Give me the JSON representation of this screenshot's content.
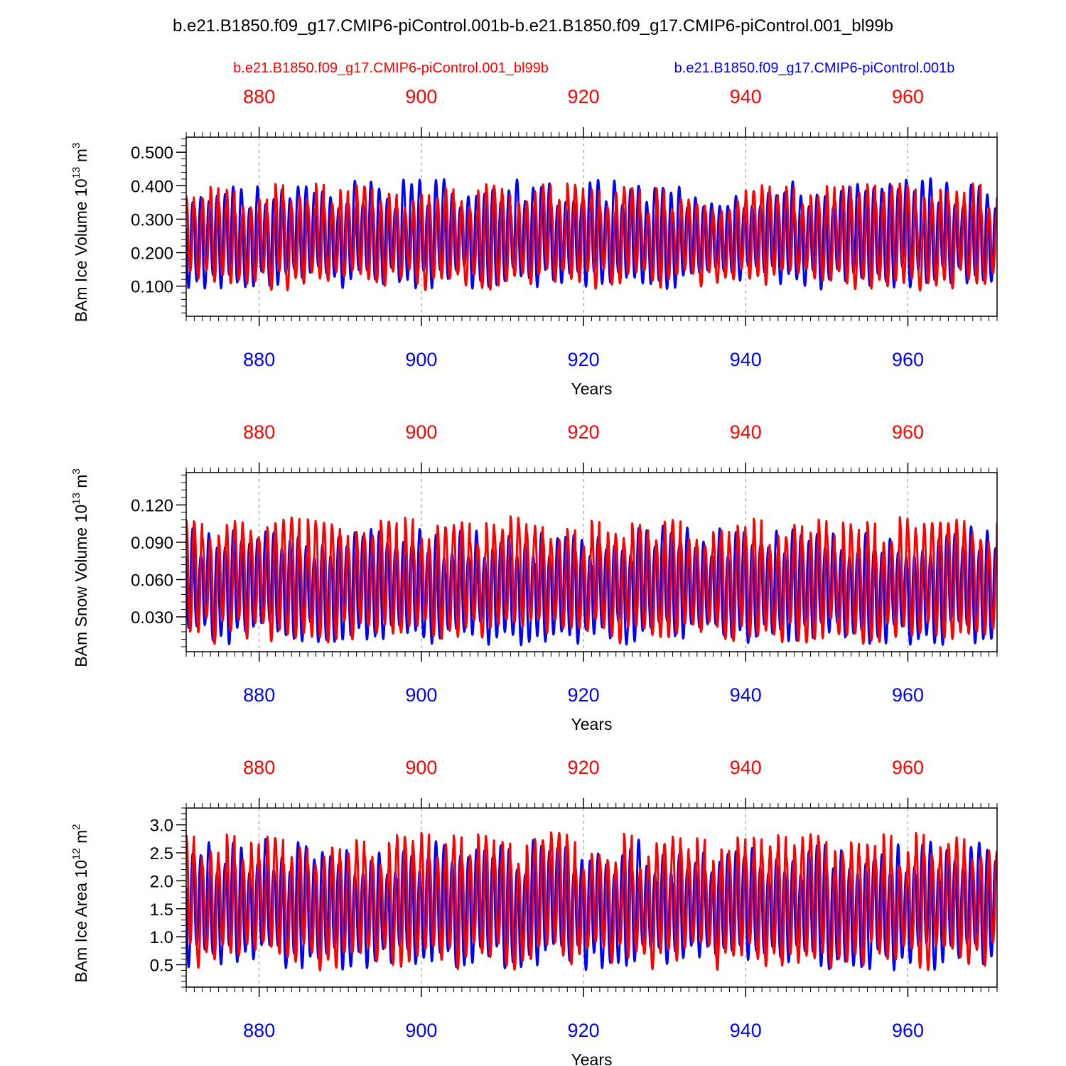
{
  "title": "b.e21.B1850.f09_g17.CMIP6-piControl.001b-b.e21.B1850.f09_g17.CMIP6-piControl.001_bl99b",
  "legend": {
    "red_label": "b.e21.B1850.f09_g17.CMIP6-piControl.001_bl99b",
    "blue_label": "b.e21.B1850.f09_g17.CMIP6-piControl.001b"
  },
  "colors": {
    "red": "#ff0000",
    "blue": "#0000ff",
    "axis": "#000000",
    "grid": "#888888"
  },
  "chart_data": [
    {
      "type": "line",
      "ylabel": "BAm Ice Volume 10",
      "ylabel_exp": "13",
      "ylabel_unit": " m",
      "ylabel_unit_exp": "3",
      "xlabel": "Years",
      "xlim": [
        871,
        971
      ],
      "ylim": [
        0.01,
        0.545
      ],
      "yticks": [
        0.1,
        0.2,
        0.3,
        0.4,
        0.5
      ],
      "ytick_labels": [
        "0.100",
        "0.200",
        "0.300",
        "0.400",
        "0.500"
      ],
      "xticks": [
        880,
        900,
        920,
        940,
        960
      ],
      "xtick_labels": [
        "880",
        "900",
        "920",
        "940",
        "960"
      ],
      "series": [
        {
          "name": "b.e21.B1850.f09_g17.CMIP6-piControl.001b",
          "color": "#0000ff",
          "base": 0.245,
          "amp": 0.155,
          "phase": 0.2,
          "seed": 3
        },
        {
          "name": "b.e21.B1850.f09_g17.CMIP6-piControl.001_bl99b",
          "color": "#ff0000",
          "base": 0.235,
          "amp": 0.15,
          "phase": 0.0,
          "seed": 7
        }
      ]
    },
    {
      "type": "line",
      "ylabel": "BAm Snow Volume 10",
      "ylabel_exp": "13",
      "ylabel_unit": " m",
      "ylabel_unit_exp": "3",
      "xlabel": "Years",
      "xlim": [
        871,
        971
      ],
      "ylim": [
        0.002,
        0.146
      ],
      "yticks": [
        0.03,
        0.06,
        0.09,
        0.12
      ],
      "ytick_labels": [
        "0.030",
        "0.060",
        "0.090",
        "0.120"
      ],
      "xticks": [
        880,
        900,
        920,
        940,
        960
      ],
      "xtick_labels": [
        "880",
        "900",
        "920",
        "940",
        "960"
      ],
      "series": [
        {
          "name": "b.e21.B1850.f09_g17.CMIP6-piControl.001b",
          "color": "#0000ff",
          "base": 0.052,
          "amp": 0.045,
          "phase": 0.2,
          "seed": 11
        },
        {
          "name": "b.e21.B1850.f09_g17.CMIP6-piControl.001_bl99b",
          "color": "#ff0000",
          "base": 0.056,
          "amp": 0.048,
          "phase": 0.0,
          "seed": 5
        }
      ]
    },
    {
      "type": "line",
      "ylabel": "BAm Ice Area 10",
      "ylabel_exp": "12",
      "ylabel_unit": " m",
      "ylabel_unit_exp": "2",
      "xlabel": "Years",
      "xlim": [
        871,
        971
      ],
      "ylim": [
        0.1,
        3.3
      ],
      "yticks": [
        0.5,
        1.0,
        1.5,
        2.0,
        2.5,
        3.0
      ],
      "ytick_labels": [
        "0.5",
        "1.0",
        "1.5",
        "2.0",
        "2.5",
        "3.0"
      ],
      "xticks": [
        880,
        900,
        920,
        940,
        960
      ],
      "xtick_labels": [
        "880",
        "900",
        "920",
        "940",
        "960"
      ],
      "series": [
        {
          "name": "b.e21.B1850.f09_g17.CMIP6-piControl.001b",
          "color": "#0000ff",
          "base": 1.5,
          "amp": 1.1,
          "phase": 0.2,
          "seed": 13
        },
        {
          "name": "b.e21.B1850.f09_g17.CMIP6-piControl.001_bl99b",
          "color": "#ff0000",
          "base": 1.55,
          "amp": 1.15,
          "phase": 0.0,
          "seed": 17
        }
      ]
    }
  ]
}
